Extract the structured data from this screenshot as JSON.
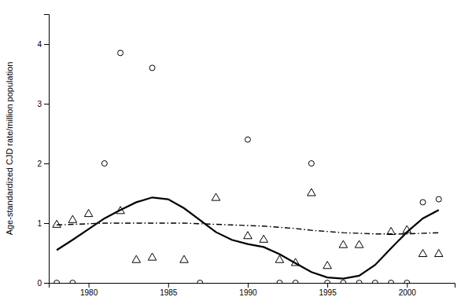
{
  "chart_data": {
    "type": "scatter",
    "ylabel": "Age-standardized CJD rate/million population",
    "xlim": [
      1977.5,
      2003.0
    ],
    "ylim": [
      0,
      4.5
    ],
    "xticks": [
      1980,
      1985,
      1990,
      1995,
      2000
    ],
    "yticks": [
      0,
      1,
      2,
      3,
      4
    ],
    "grid": false,
    "series": [
      {
        "type": "scatter",
        "marker": "circle",
        "color": "#000000",
        "x": [
          1978,
          1979,
          1981,
          1982,
          1984,
          1987,
          1990,
          1992,
          1993,
          1994,
          1995,
          1996,
          1997,
          1998,
          1999,
          2000,
          2001,
          2002
        ],
        "values": [
          0.0,
          0.0,
          2.0,
          3.85,
          3.6,
          0.0,
          2.4,
          0.0,
          0.0,
          2.0,
          0.0,
          0.0,
          0.0,
          0.0,
          0.0,
          0.0,
          1.35,
          1.4
        ]
      },
      {
        "type": "scatter",
        "marker": "triangle",
        "color": "#000000",
        "x": [
          1978,
          1979,
          1980,
          1982,
          1983,
          1984,
          1986,
          1988,
          1990,
          1991,
          1992,
          1993,
          1994,
          1995,
          1996,
          1997,
          1999,
          2000,
          2001,
          2002
        ],
        "values": [
          0.97,
          1.05,
          1.15,
          1.2,
          0.38,
          0.42,
          0.38,
          1.42,
          0.78,
          0.72,
          0.38,
          0.33,
          1.5,
          0.28,
          0.63,
          0.63,
          0.85,
          0.88,
          0.48,
          0.48
        ]
      },
      {
        "type": "line",
        "line_style": "solid",
        "color": "#000000",
        "x": [
          1978,
          1979,
          1980,
          1981,
          1982,
          1983,
          1984,
          1985,
          1986,
          1987,
          1988,
          1989,
          1990,
          1991,
          1992,
          1993,
          1994,
          1995,
          1996,
          1997,
          1998,
          1999,
          2000,
          2001,
          2002
        ],
        "values": [
          0.55,
          0.72,
          0.9,
          1.08,
          1.22,
          1.35,
          1.43,
          1.4,
          1.25,
          1.05,
          0.85,
          0.72,
          0.65,
          0.6,
          0.48,
          0.33,
          0.18,
          0.09,
          0.07,
          0.12,
          0.3,
          0.58,
          0.85,
          1.08,
          1.22
        ]
      },
      {
        "type": "line",
        "line_style": "dashdot",
        "color": "#000000",
        "x": [
          1978,
          1979,
          1980,
          1981,
          1982,
          1983,
          1984,
          1985,
          1986,
          1987,
          1988,
          1989,
          1990,
          1991,
          1992,
          1993,
          1994,
          1995,
          1996,
          1997,
          1998,
          1999,
          2000,
          2001,
          2002
        ],
        "values": [
          0.97,
          0.98,
          0.99,
          1.0,
          1.0,
          1.0,
          1.0,
          1.0,
          1.0,
          0.99,
          0.98,
          0.97,
          0.96,
          0.95,
          0.93,
          0.91,
          0.88,
          0.86,
          0.84,
          0.83,
          0.82,
          0.82,
          0.82,
          0.83,
          0.84
        ]
      }
    ]
  }
}
